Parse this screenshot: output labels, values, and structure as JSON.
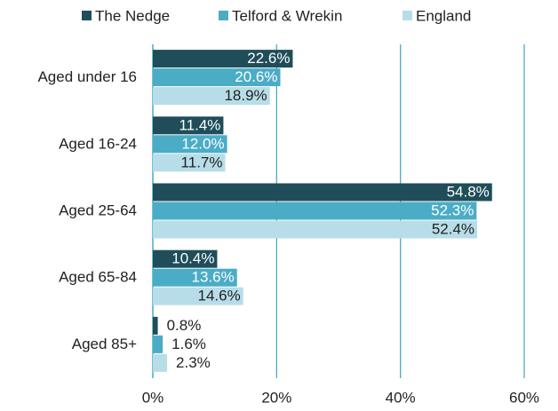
{
  "chart_data": {
    "type": "hbar",
    "categories": [
      "Aged under 16",
      "Aged 16-24",
      "Aged 25-64",
      "Aged 65-84",
      "Aged 85+"
    ],
    "series": [
      {
        "name": "The Nedge",
        "color": "#1f4e5a",
        "values": [
          22.6,
          11.4,
          54.8,
          10.4,
          0.8
        ],
        "value_labels": [
          "22.6%",
          "11.4%",
          "54.8%",
          "10.4%",
          "0.8%"
        ]
      },
      {
        "name": "Telford & Wrekin",
        "color": "#4bacc6",
        "values": [
          20.6,
          12.0,
          52.3,
          13.6,
          1.6
        ],
        "value_labels": [
          "20.6%",
          "12.0%",
          "52.3%",
          "13.6%",
          "1.6%"
        ]
      },
      {
        "name": "England",
        "color": "#b7dde8",
        "values": [
          18.9,
          11.7,
          52.4,
          14.6,
          2.3
        ],
        "value_labels": [
          "18.9%",
          "11.7%",
          "52.4%",
          "14.6%",
          "2.3%"
        ]
      }
    ],
    "xlim": [
      0,
      60
    ],
    "xticks": [
      {
        "value": 0,
        "label": "0%"
      },
      {
        "value": 20,
        "label": "20%"
      },
      {
        "value": 40,
        "label": "40%"
      },
      {
        "value": 60,
        "label": "60%"
      }
    ],
    "grid": true,
    "legend": "top"
  }
}
